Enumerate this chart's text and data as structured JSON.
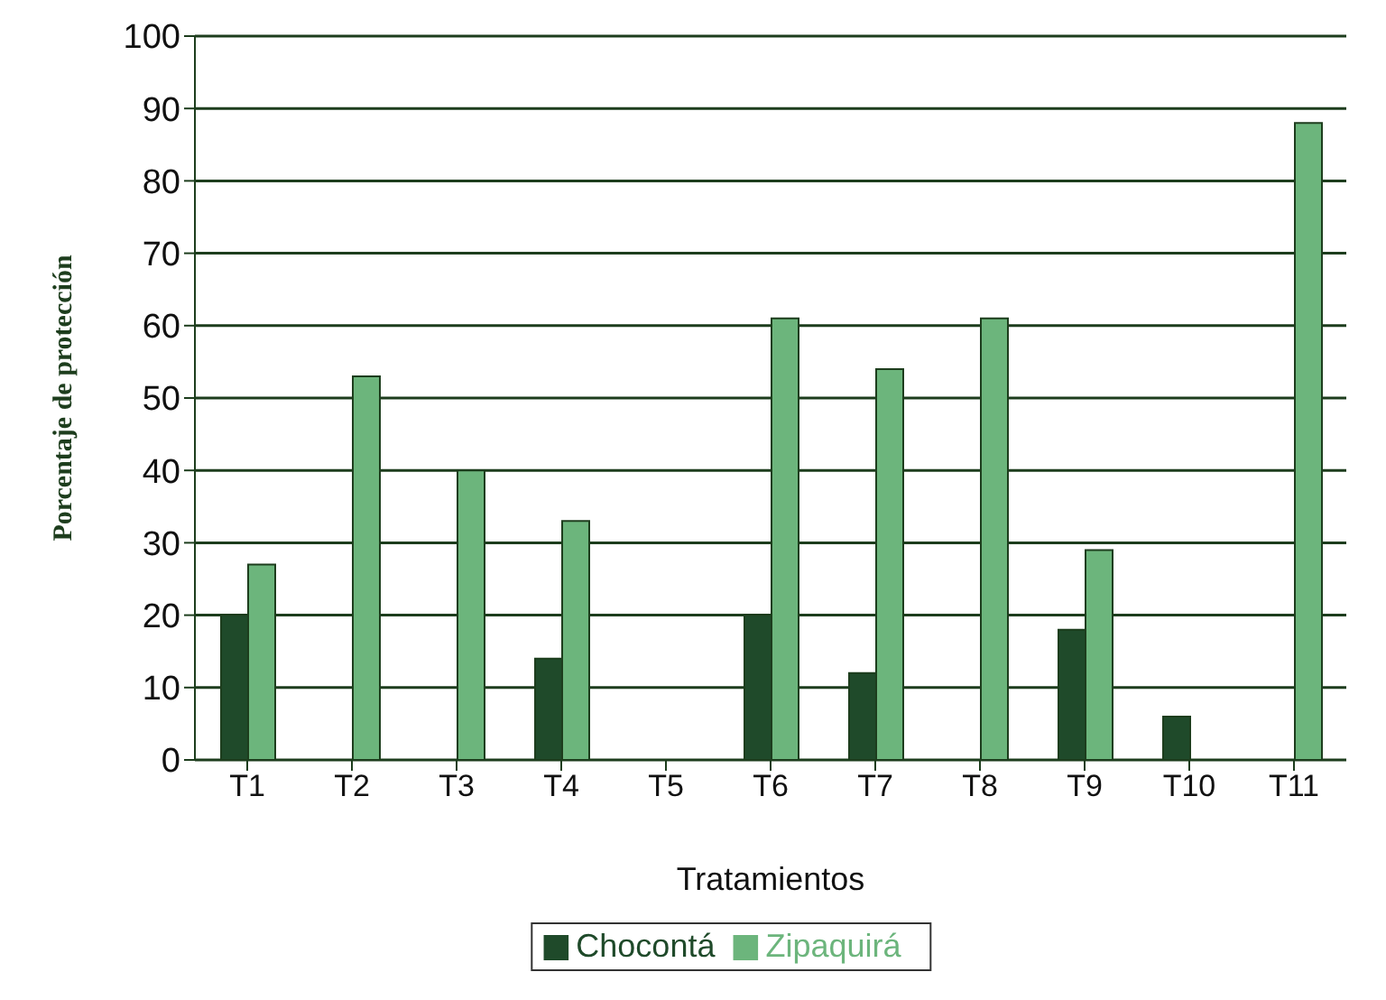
{
  "chart_data": {
    "type": "bar",
    "xlabel": "Tratamientos",
    "ylabel": "Porcentaje de protección",
    "categories": [
      "T1",
      "T2",
      "T3",
      "T4",
      "T5",
      "T6",
      "T7",
      "T8",
      "T9",
      "T10",
      "T11"
    ],
    "series": [
      {
        "name": "Chocontá",
        "color": "#1f4a2a",
        "values": [
          20,
          null,
          null,
          14,
          null,
          20,
          12,
          null,
          18,
          6,
          null
        ]
      },
      {
        "name": "Zipaquirá",
        "color": "#6cb57c",
        "values": [
          27,
          53,
          40,
          33,
          null,
          61,
          54,
          61,
          29,
          null,
          88
        ]
      }
    ],
    "ylim": [
      0,
      100
    ],
    "yticks": [
      0,
      10,
      20,
      30,
      40,
      50,
      60,
      70,
      80,
      90,
      100
    ],
    "grid": "y",
    "legend": "bottom"
  }
}
